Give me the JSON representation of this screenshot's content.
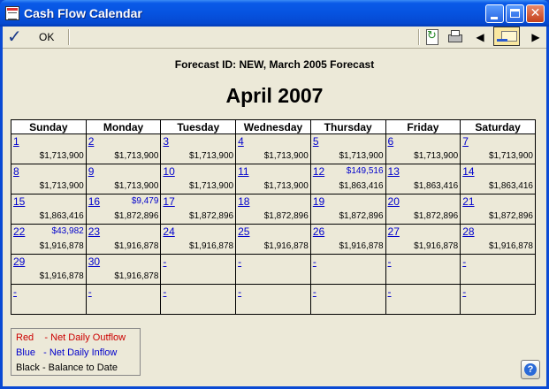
{
  "window": {
    "title": "Cash Flow Calendar",
    "close_glyph": "✕"
  },
  "toolbar": {
    "ok_label": "OK",
    "check_glyph": "✓",
    "prev_glyph": "◀",
    "next_glyph": "▶"
  },
  "header": {
    "forecast_text": "Forecast ID: NEW, March 2005 Forecast",
    "month_title": "April 2007"
  },
  "calendar": {
    "weekdays": [
      "Sunday",
      "Monday",
      "Tuesday",
      "Wednesday",
      "Thursday",
      "Friday",
      "Saturday"
    ],
    "weeks": [
      [
        {
          "day": "1",
          "inflow": "",
          "balance": "$1,713,900"
        },
        {
          "day": "2",
          "inflow": "",
          "balance": "$1,713,900"
        },
        {
          "day": "3",
          "inflow": "",
          "balance": "$1,713,900"
        },
        {
          "day": "4",
          "inflow": "",
          "balance": "$1,713,900"
        },
        {
          "day": "5",
          "inflow": "",
          "balance": "$1,713,900"
        },
        {
          "day": "6",
          "inflow": "",
          "balance": "$1,713,900"
        },
        {
          "day": "7",
          "inflow": "",
          "balance": "$1,713,900"
        }
      ],
      [
        {
          "day": "8",
          "inflow": "",
          "balance": "$1,713,900"
        },
        {
          "day": "9",
          "inflow": "",
          "balance": "$1,713,900"
        },
        {
          "day": "10",
          "inflow": "",
          "balance": "$1,713,900"
        },
        {
          "day": "11",
          "inflow": "",
          "balance": "$1,713,900"
        },
        {
          "day": "12",
          "inflow": "$149,516",
          "balance": "$1,863,416"
        },
        {
          "day": "13",
          "inflow": "",
          "balance": "$1,863,416"
        },
        {
          "day": "14",
          "inflow": "",
          "balance": "$1,863,416"
        }
      ],
      [
        {
          "day": "15",
          "inflow": "",
          "balance": "$1,863,416"
        },
        {
          "day": "16",
          "inflow": "$9,479",
          "balance": "$1,872,896"
        },
        {
          "day": "17",
          "inflow": "",
          "balance": "$1,872,896"
        },
        {
          "day": "18",
          "inflow": "",
          "balance": "$1,872,896"
        },
        {
          "day": "19",
          "inflow": "",
          "balance": "$1,872,896"
        },
        {
          "day": "20",
          "inflow": "",
          "balance": "$1,872,896"
        },
        {
          "day": "21",
          "inflow": "",
          "balance": "$1,872,896"
        }
      ],
      [
        {
          "day": "22",
          "inflow": "$43,982",
          "balance": "$1,916,878"
        },
        {
          "day": "23",
          "inflow": "",
          "balance": "$1,916,878"
        },
        {
          "day": "24",
          "inflow": "",
          "balance": "$1,916,878"
        },
        {
          "day": "25",
          "inflow": "",
          "balance": "$1,916,878"
        },
        {
          "day": "26",
          "inflow": "",
          "balance": "$1,916,878"
        },
        {
          "day": "27",
          "inflow": "",
          "balance": "$1,916,878"
        },
        {
          "day": "28",
          "inflow": "",
          "balance": "$1,916,878"
        }
      ],
      [
        {
          "day": "29",
          "inflow": "",
          "balance": "$1,916,878"
        },
        {
          "day": "30",
          "inflow": "",
          "balance": "$1,916,878"
        },
        {
          "day": "-",
          "inflow": "",
          "balance": ""
        },
        {
          "day": "-",
          "inflow": "",
          "balance": ""
        },
        {
          "day": "-",
          "inflow": "",
          "balance": ""
        },
        {
          "day": "-",
          "inflow": "",
          "balance": ""
        },
        {
          "day": "-",
          "inflow": "",
          "balance": ""
        }
      ],
      [
        {
          "day": "-",
          "inflow": "",
          "balance": ""
        },
        {
          "day": "-",
          "inflow": "",
          "balance": ""
        },
        {
          "day": "-",
          "inflow": "",
          "balance": ""
        },
        {
          "day": "-",
          "inflow": "",
          "balance": ""
        },
        {
          "day": "-",
          "inflow": "",
          "balance": ""
        },
        {
          "day": "-",
          "inflow": "",
          "balance": ""
        },
        {
          "day": "-",
          "inflow": "",
          "balance": ""
        }
      ]
    ]
  },
  "legend": [
    {
      "text": "Red    - Net Daily Outflow",
      "color": "#cc0000"
    },
    {
      "text": "Blue   - Net Daily Inflow",
      "color": "#0000cc"
    },
    {
      "text": "Black - Balance to Date",
      "color": "#000000"
    }
  ],
  "help": {
    "glyph": "?"
  }
}
